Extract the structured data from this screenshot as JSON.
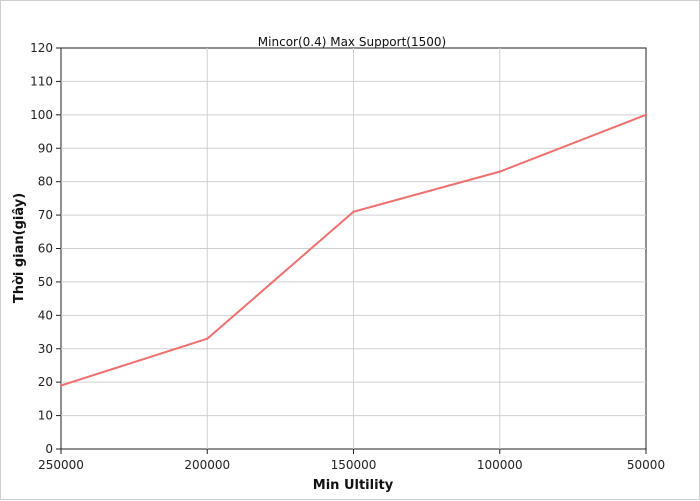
{
  "chart_data": {
    "type": "line",
    "title": "Mincor(0.4) Max Support(1500)",
    "xlabel": "Min Ultility",
    "ylabel": "Thời gian(giây)",
    "categories": [
      "250000",
      "200000",
      "150000",
      "100000",
      "50000"
    ],
    "y_ticks": [
      "0",
      "10",
      "20",
      "30",
      "40",
      "50",
      "60",
      "70",
      "80",
      "90",
      "100",
      "110",
      "120"
    ],
    "ylim": [
      0,
      120
    ],
    "grid": true,
    "series": [
      {
        "values": [
          19,
          33,
          71,
          83,
          100
        ],
        "color": "#f07070"
      }
    ]
  }
}
